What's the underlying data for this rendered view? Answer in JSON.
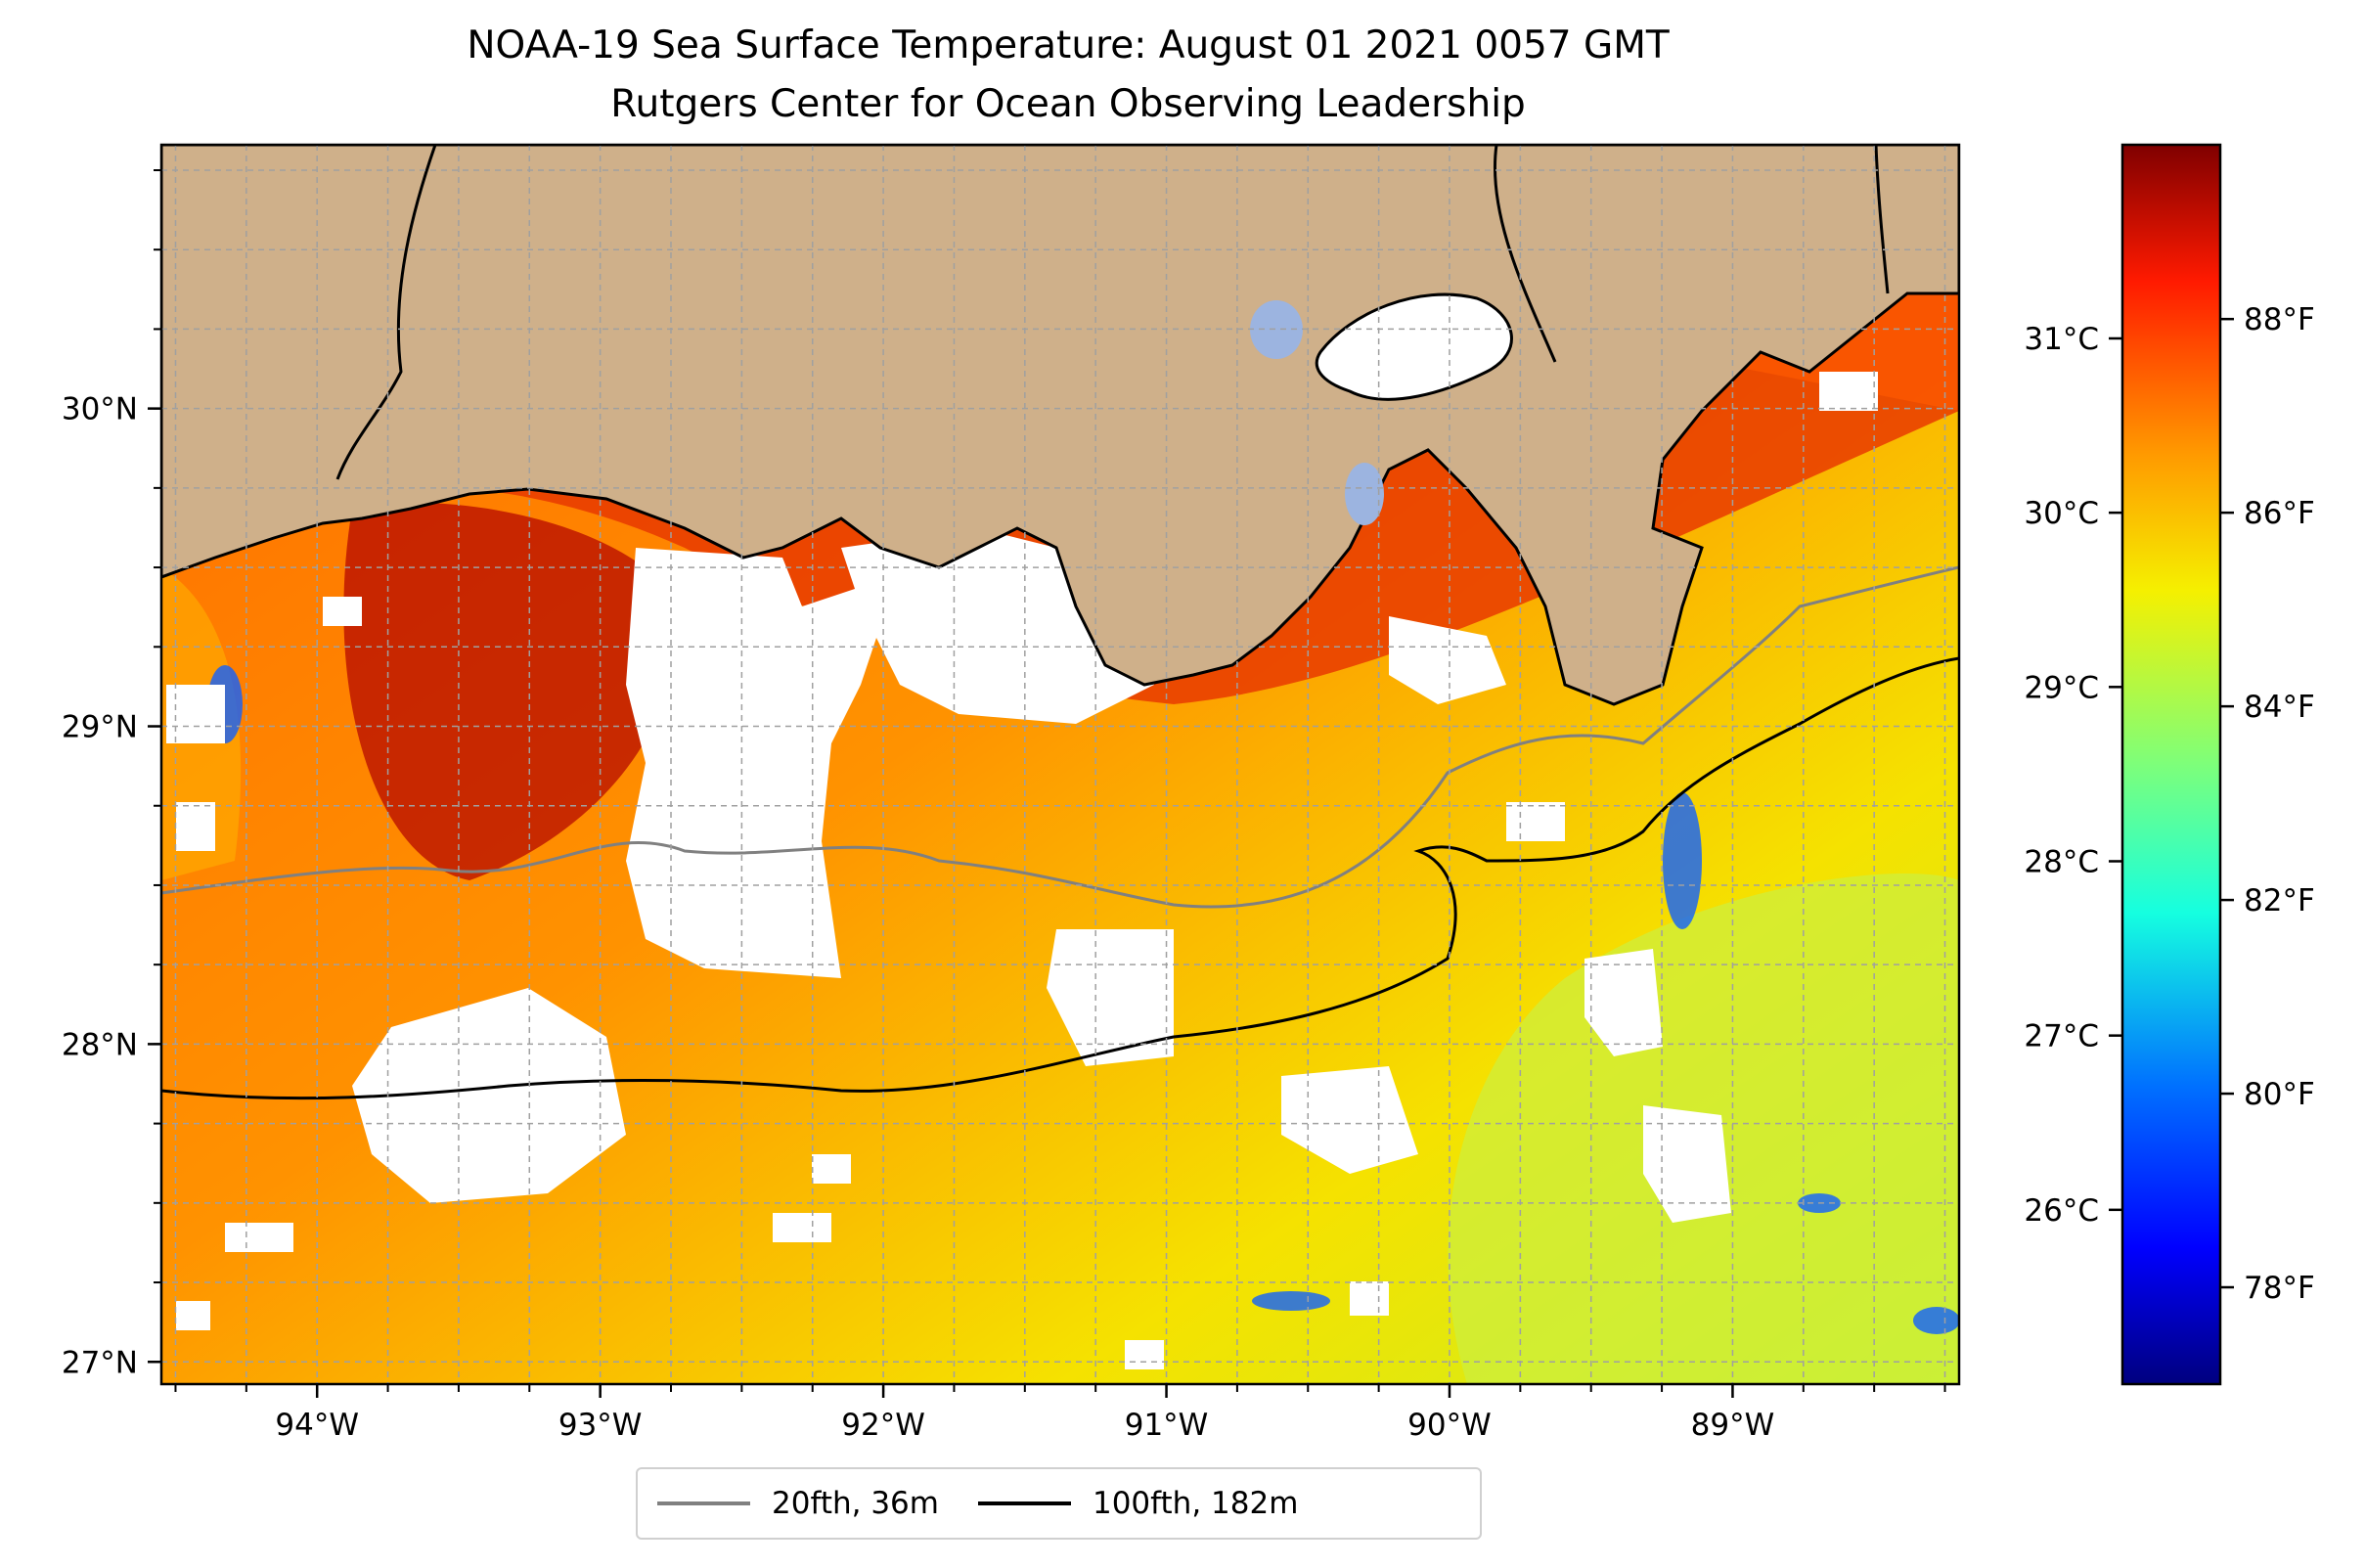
{
  "title": {
    "line1": "NOAA-19 Sea Surface Temperature: August 01 2021 0057 GMT",
    "line2": "Rutgers Center for Ocean Observing Leadership"
  },
  "map": {
    "lon_range": [
      -94.55,
      -88.2
    ],
    "lat_range": [
      26.93,
      30.83
    ],
    "lon_ticks": [
      {
        "value": -94,
        "label": "94°W"
      },
      {
        "value": -93,
        "label": "93°W"
      },
      {
        "value": -92,
        "label": "92°W"
      },
      {
        "value": -91,
        "label": "91°W"
      },
      {
        "value": -90,
        "label": "90°W"
      },
      {
        "value": -89,
        "label": "89°W"
      }
    ],
    "lat_ticks": [
      {
        "value": 27,
        "label": "27°N"
      },
      {
        "value": 28,
        "label": "28°N"
      },
      {
        "value": 29,
        "label": "29°N"
      },
      {
        "value": 30,
        "label": "30°N"
      }
    ],
    "gridlines": true,
    "land_color": "#cfb08a",
    "lake_color": "#9cb4e0",
    "missing_data_color": "#ffffff"
  },
  "colorbar": {
    "colormap": "jet",
    "range_f": [
      77,
      89.8
    ],
    "fahrenheit_ticks": [
      {
        "value": 78,
        "label": "78°F"
      },
      {
        "value": 80,
        "label": "80°F"
      },
      {
        "value": 82,
        "label": "82°F"
      },
      {
        "value": 84,
        "label": "84°F"
      },
      {
        "value": 86,
        "label": "86°F"
      },
      {
        "value": 88,
        "label": "88°F"
      }
    ],
    "celsius_ticks": [
      {
        "value": 26,
        "label": "26°C"
      },
      {
        "value": 27,
        "label": "27°C"
      },
      {
        "value": 28,
        "label": "28°C"
      },
      {
        "value": 29,
        "label": "29°C"
      },
      {
        "value": 30,
        "label": "30°C"
      },
      {
        "value": 31,
        "label": "31°C"
      }
    ]
  },
  "legend": {
    "items": [
      {
        "label": "20fth, 36m",
        "color": "#808080"
      },
      {
        "label": "100fth, 182m",
        "color": "#000000"
      }
    ]
  }
}
